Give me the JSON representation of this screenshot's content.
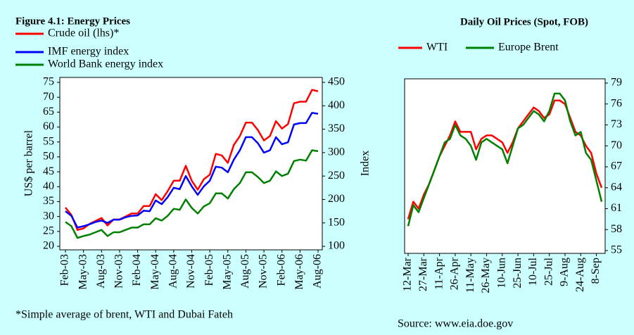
{
  "chart_data": [
    {
      "type": "line",
      "title": "Figure 4.1: Energy Prices",
      "ylabel": "US$ per barrel",
      "y2label": "Index",
      "footnote": "*Simple average of brent, WTI and Dubai Fateh",
      "categories": [
        "Feb-03",
        null,
        null,
        "May-03",
        null,
        null,
        "Aug-03",
        null,
        null,
        "Nov-03",
        null,
        null,
        "Feb-04",
        null,
        null,
        "May-04",
        null,
        null,
        "Aug-04",
        null,
        null,
        "Nov-04",
        null,
        null,
        "Feb-05",
        null,
        null,
        "May-05",
        null,
        null,
        "Aug-05",
        null,
        null,
        "Nov-05",
        null,
        null,
        "Feb-06",
        null,
        null,
        "May-06",
        null,
        null,
        "Aug-06"
      ],
      "series": [
        {
          "name": "Crude oil (lhs)*",
          "color": "#ff0000",
          "values": [
            33,
            30.5,
            25.5,
            26,
            27.5,
            28.5,
            29.5,
            27,
            29,
            29,
            30,
            31,
            31,
            33.5,
            33.5,
            37.5,
            35.5,
            38.5,
            42,
            42,
            47,
            42,
            39,
            42.5,
            44,
            51,
            50.5,
            48,
            54,
            57,
            61.5,
            61.5,
            59,
            55.5,
            57,
            62,
            59.5,
            61,
            68,
            68.5,
            68.5,
            72.5,
            72
          ]
        },
        {
          "name": "IMF energy index",
          "color": "#0000ff",
          "axis": "y2",
          "values": [
            175,
            165,
            140,
            143,
            147,
            152,
            155,
            150,
            157,
            157,
            162,
            165,
            166,
            176,
            175,
            198,
            190,
            205,
            225,
            222,
            250,
            228,
            210,
            228,
            240,
            270,
            268,
            258,
            285,
            305,
            333,
            333,
            320,
            300,
            305,
            333,
            318,
            322,
            360,
            363,
            363,
            385,
            383
          ]
        },
        {
          "name": "World Bank energy index",
          "color": "#008000",
          "axis": "y2",
          "values": [
            152,
            143,
            118,
            122,
            125,
            130,
            135,
            122,
            130,
            130,
            135,
            140,
            140,
            147,
            147,
            160,
            155,
            165,
            180,
            178,
            200,
            182,
            170,
            185,
            192,
            213,
            213,
            202,
            222,
            235,
            258,
            258,
            248,
            235,
            240,
            260,
            250,
            255,
            282,
            285,
            283,
            305,
            303
          ]
        }
      ],
      "ylim": [
        20,
        75
      ],
      "yticks": [
        20,
        25,
        30,
        35,
        40,
        45,
        50,
        55,
        60,
        65,
        70,
        75
      ],
      "y2lim": [
        100,
        450
      ],
      "y2ticks": [
        100,
        150,
        200,
        250,
        300,
        350,
        400,
        450
      ]
    },
    {
      "type": "line",
      "title": "Daily Oil Prices (Spot, FOB)",
      "footnote": "Source: www.eia.doe.gov",
      "categories": [
        "12-Mar",
        null,
        null,
        "27-Mar",
        null,
        null,
        "11-Apr",
        null,
        null,
        "26-Apr",
        null,
        null,
        "11-May",
        null,
        null,
        "26-May",
        null,
        null,
        "10-Jun",
        null,
        null,
        "25-Jun",
        null,
        null,
        "10-Jul",
        null,
        null,
        "25-Jul",
        null,
        null,
        "9-Aug",
        null,
        null,
        "24-Aug",
        null,
        null,
        "8-Sep",
        null
      ],
      "series": [
        {
          "name": "WTI",
          "color": "#ff0000",
          "values": [
            59.5,
            62,
            61,
            63,
            64.5,
            66.5,
            68.5,
            70,
            71.5,
            73.5,
            72,
            72,
            72,
            69.5,
            71,
            71.5,
            71.5,
            71,
            70.5,
            69,
            70.5,
            72.5,
            73.5,
            74.5,
            75.5,
            75,
            74,
            74.5,
            76.5,
            76.5,
            76,
            74,
            72,
            71.5,
            70,
            69,
            66,
            64
          ]
        },
        {
          "name": "Europe Brent",
          "color": "#008000",
          "values": [
            58.5,
            61.5,
            60.5,
            62.5,
            64.5,
            66.5,
            68.5,
            70.5,
            71,
            73,
            71.5,
            71,
            70,
            68,
            70.5,
            71,
            70.5,
            70,
            69.5,
            67.5,
            70,
            72.5,
            73,
            74,
            75,
            74.5,
            73.5,
            75,
            77.5,
            77.5,
            76.5,
            73.5,
            71.5,
            72,
            69,
            68,
            65,
            62
          ]
        }
      ],
      "ylim": [
        55,
        79
      ],
      "yticks": [
        55,
        58,
        61,
        64,
        67,
        70,
        73,
        76,
        79
      ],
      "yaxis_side": "right"
    }
  ]
}
